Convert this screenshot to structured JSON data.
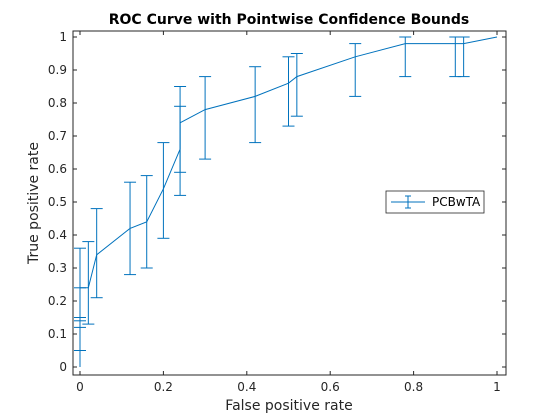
{
  "chart_data": {
    "type": "line",
    "title": "ROC Curve with Pointwise Confidence Bounds",
    "xlabel": "False positive rate",
    "ylabel": "True positive rate",
    "xlim": [
      0,
      1
    ],
    "ylim": [
      0,
      1
    ],
    "xticks": [
      0,
      0.2,
      0.4,
      0.6,
      0.8,
      1
    ],
    "yticks": [
      0,
      0.1,
      0.2,
      0.3,
      0.4,
      0.5,
      0.6,
      0.7,
      0.8,
      0.9,
      1
    ],
    "xtick_labels": [
      "0",
      "0.2",
      "0.4",
      "0.6",
      "0.8",
      "1"
    ],
    "ytick_labels": [
      "0",
      "0.1",
      "0.2",
      "0.3",
      "0.4",
      "0.5",
      "0.6",
      "0.7",
      "0.8",
      "0.9",
      "1"
    ],
    "grid": false,
    "legend_position": "right",
    "color": "#0072BD",
    "series": [
      {
        "name": "PCBwTA",
        "points": [
          {
            "x": 0,
            "y": 0,
            "lo": 0,
            "hi": 0
          },
          {
            "x": 0,
            "y": 0.1,
            "lo": 0.05,
            "hi": 0.14
          },
          {
            "x": 0,
            "y": 0.14,
            "lo": 0.12,
            "hi": 0.24
          },
          {
            "x": 0,
            "y": 0.24,
            "lo": 0.15,
            "hi": 0.36
          },
          {
            "x": 0.02,
            "y": 0.24,
            "lo": 0.13,
            "hi": 0.38
          },
          {
            "x": 0.04,
            "y": 0.34,
            "lo": 0.21,
            "hi": 0.48
          },
          {
            "x": 0.12,
            "y": 0.42,
            "lo": 0.28,
            "hi": 0.56
          },
          {
            "x": 0.16,
            "y": 0.44,
            "lo": 0.3,
            "hi": 0.58
          },
          {
            "x": 0.2,
            "y": 0.54,
            "lo": 0.39,
            "hi": 0.68
          },
          {
            "x": 0.24,
            "y": 0.66,
            "lo": 0.52,
            "hi": 0.79
          },
          {
            "x": 0.24,
            "y": 0.74,
            "lo": 0.59,
            "hi": 0.85
          },
          {
            "x": 0.3,
            "y": 0.78,
            "lo": 0.63,
            "hi": 0.88
          },
          {
            "x": 0.42,
            "y": 0.82,
            "lo": 0.68,
            "hi": 0.91
          },
          {
            "x": 0.5,
            "y": 0.86,
            "lo": 0.73,
            "hi": 0.94
          },
          {
            "x": 0.52,
            "y": 0.88,
            "lo": 0.76,
            "hi": 0.95
          },
          {
            "x": 0.66,
            "y": 0.94,
            "lo": 0.82,
            "hi": 0.98
          },
          {
            "x": 0.78,
            "y": 0.98,
            "lo": 0.88,
            "hi": 1.0
          },
          {
            "x": 0.9,
            "y": 0.98,
            "lo": 0.88,
            "hi": 1.0
          },
          {
            "x": 0.92,
            "y": 0.98,
            "lo": 0.88,
            "hi": 1.0
          },
          {
            "x": 1,
            "y": 1,
            "lo": 1,
            "hi": 1
          }
        ]
      }
    ]
  }
}
